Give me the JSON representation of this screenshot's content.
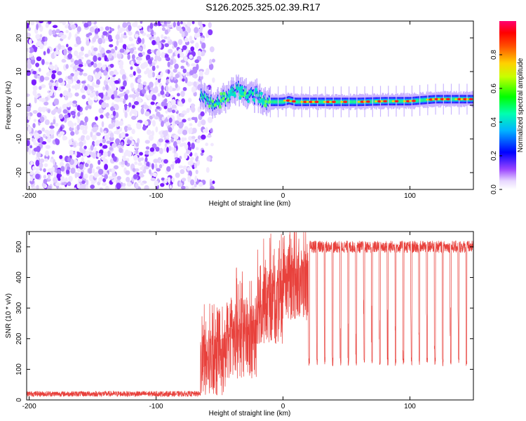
{
  "chart_data": [
    {
      "type": "heatmap",
      "title": "S126.2025.325.02.39.R17",
      "xlabel": "Height of straight line (km)",
      "ylabel": "Frequency (Hz)",
      "xlim": [
        -202,
        150
      ],
      "ylim": [
        -25,
        25
      ],
      "x_ticks": [
        -200,
        -100,
        0,
        100
      ],
      "x_tick_labels": [
        "-200",
        "-100",
        "0",
        "100"
      ],
      "y_ticks": [
        -20,
        -10,
        0,
        10,
        20
      ],
      "y_tick_labels": [
        "-20",
        "-10",
        "0",
        "10",
        "20"
      ],
      "colorbar": {
        "label": "Normalized spectral amplitude",
        "range": [
          0,
          1
        ],
        "ticks": [
          0.0,
          0.2,
          0.4,
          0.6,
          0.8
        ],
        "tick_labels": [
          "0.0",
          "0.2",
          "0.4",
          "0.6",
          "0.8"
        ]
      },
      "noise_region_x": [
        -202,
        -62
      ],
      "signal_onset_km": -65,
      "signal_track": [
        {
          "x": -65,
          "freq": 3.0
        },
        {
          "x": -60,
          "freq": 2.0
        },
        {
          "x": -55,
          "freq": 0.0
        },
        {
          "x": -50,
          "freq": 1.0
        },
        {
          "x": -45,
          "freq": 2.5
        },
        {
          "x": -40,
          "freq": 4.0
        },
        {
          "x": -35,
          "freq": 5.0
        },
        {
          "x": -30,
          "freq": 3.5
        },
        {
          "x": -25,
          "freq": 3.0
        },
        {
          "x": -20,
          "freq": 2.5
        },
        {
          "x": -15,
          "freq": 1.5
        },
        {
          "x": -10,
          "freq": 1.0
        },
        {
          "x": -5,
          "freq": 1.0
        },
        {
          "x": 0,
          "freq": 1.0
        },
        {
          "x": 5,
          "freq": 1.5
        },
        {
          "x": 10,
          "freq": 1.0
        },
        {
          "x": 20,
          "freq": 1.0
        },
        {
          "x": 40,
          "freq": 1.0
        },
        {
          "x": 60,
          "freq": 1.0
        },
        {
          "x": 80,
          "freq": 1.2
        },
        {
          "x": 100,
          "freq": 1.2
        },
        {
          "x": 120,
          "freq": 1.8
        },
        {
          "x": 150,
          "freq": 1.8
        }
      ]
    },
    {
      "type": "line",
      "xlabel": "Height of straight line (km)",
      "ylabel": "SNR (10 * v/v)",
      "xlim": [
        -202,
        150
      ],
      "ylim": [
        0,
        550
      ],
      "x_ticks": [
        -200,
        -100,
        0,
        100
      ],
      "x_tick_labels": [
        "-200",
        "-100",
        "0",
        "100"
      ],
      "y_ticks": [
        0,
        100,
        200,
        300,
        400,
        500
      ],
      "y_tick_labels": [
        "0",
        "100",
        "200",
        "300",
        "400",
        "500"
      ],
      "line_color": "#e8413c",
      "series": [
        {
          "name": "SNR",
          "segments": [
            {
              "x_start": -202,
              "x_end": -65,
              "mean": 20,
              "noise": 18
            },
            {
              "x_start": -65,
              "x_end": -45,
              "mean": 120,
              "noise": 220
            },
            {
              "x_start": -45,
              "x_end": -20,
              "mean": 200,
              "noise": 260
            },
            {
              "x_start": -20,
              "x_end": 0,
              "mean": 310,
              "noise": 260
            },
            {
              "x_start": 0,
              "x_end": 20,
              "mean": 380,
              "noise": 240
            },
            {
              "x_start": 20,
              "x_end": 150,
              "mean": 500,
              "noise": 40
            }
          ],
          "periodic_dip_level": 125,
          "periodic_dip_spacing_km": 6.2
        }
      ]
    }
  ],
  "colors": {
    "colormap": [
      "#ff00ff",
      "#8000ff",
      "#0000ff",
      "#00c0ff",
      "#00ff80",
      "#80ff00",
      "#ffff00",
      "#ff8000",
      "#ff0000",
      "#ff0080"
    ],
    "noise": "#7b2fff",
    "axis": "#000000"
  }
}
